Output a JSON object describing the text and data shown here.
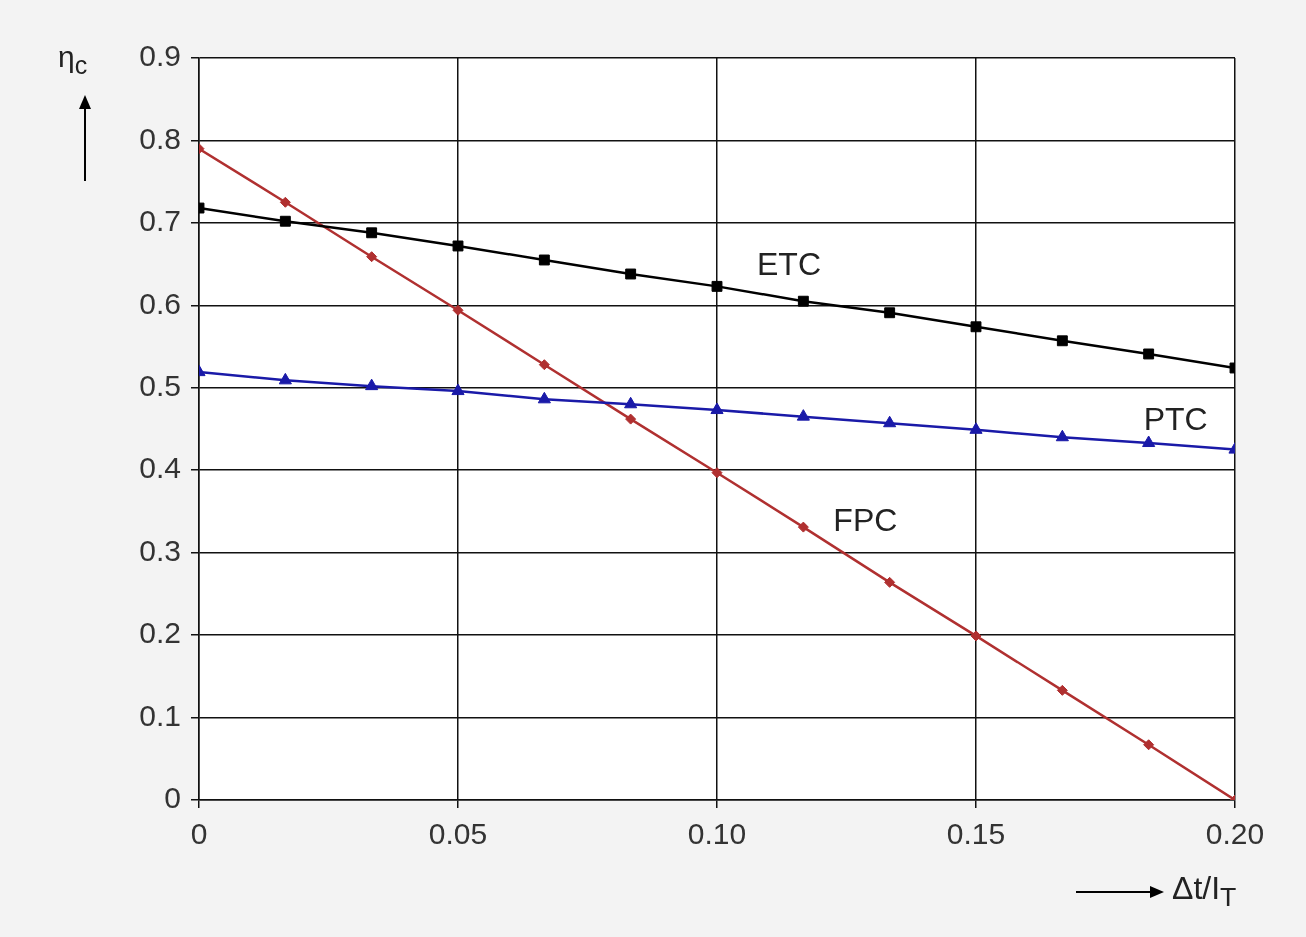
{
  "chart_data": {
    "type": "line",
    "xlabel": "Δt/I$_{T}$",
    "ylabel": "η$_{c}$",
    "x": [
      0,
      0.01667,
      0.03333,
      0.05,
      0.06667,
      0.08333,
      0.1,
      0.11667,
      0.13333,
      0.15,
      0.16667,
      0.18333,
      0.2
    ],
    "series": [
      {
        "name": "ETC",
        "color": "#000000",
        "marker": "square",
        "values": [
          0.718,
          0.702,
          0.688,
          0.672,
          0.655,
          0.638,
          0.623,
          0.605,
          0.591,
          0.574,
          0.557,
          0.541,
          0.524
        ]
      },
      {
        "name": "PTC",
        "color": "#1a1aa8",
        "marker": "triangle",
        "values": [
          0.519,
          0.509,
          0.502,
          0.496,
          0.486,
          0.48,
          0.473,
          0.465,
          0.457,
          0.449,
          0.44,
          0.433,
          0.425
        ]
      },
      {
        "name": "FPC",
        "color": "#b03030",
        "marker": "diamond",
        "values": [
          0.79,
          0.725,
          0.659,
          0.594,
          0.528,
          0.462,
          0.397,
          0.331,
          0.264,
          0.199,
          0.133,
          0.067,
          0
        ]
      }
    ],
    "xlim": [
      0,
      0.2
    ],
    "xticks": [
      0,
      0.05,
      {
        "value": 0.1,
        "label": "0.10"
      },
      {
        "value": 0.15,
        "label": "0.15"
      },
      {
        "value": 0.2,
        "label": "0.20"
      }
    ],
    "ylim": [
      0,
      0.9
    ],
    "yticks": [
      0,
      0.1,
      0.2,
      0.3,
      0.4,
      0.5,
      0.6,
      0.7,
      0.8,
      0.9
    ],
    "grid": true,
    "legend": false,
    "line_style": "solid"
  }
}
